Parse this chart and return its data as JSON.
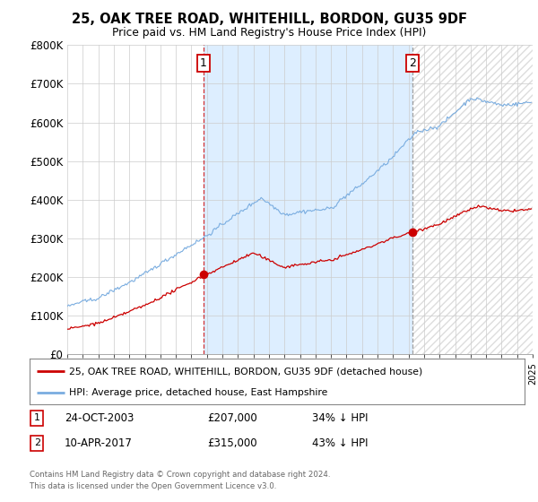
{
  "title": "25, OAK TREE ROAD, WHITEHILL, BORDON, GU35 9DF",
  "subtitle": "Price paid vs. HM Land Registry's House Price Index (HPI)",
  "sale1_x": 2003.792,
  "sale1_price": 207000,
  "sale2_x": 2017.25,
  "sale2_price": 315000,
  "legend_line1": "25, OAK TREE ROAD, WHITEHILL, BORDON, GU35 9DF (detached house)",
  "legend_line2": "HPI: Average price, detached house, East Hampshire",
  "footer1": "Contains HM Land Registry data © Crown copyright and database right 2024.",
  "footer2": "This data is licensed under the Open Government Licence v3.0.",
  "info1_date": "24-OCT-2003",
  "info1_price": "£207,000",
  "info1_hpi": "34% ↓ HPI",
  "info2_date": "10-APR-2017",
  "info2_price": "£315,000",
  "info2_hpi": "43% ↓ HPI",
  "sale_color": "#cc0000",
  "hpi_color": "#7aade0",
  "shade_color": "#ddeeff",
  "vline1_color": "#cc0000",
  "vline2_color": "#888888",
  "ylim_max": 800000,
  "start_year": 1995,
  "end_year": 2025
}
